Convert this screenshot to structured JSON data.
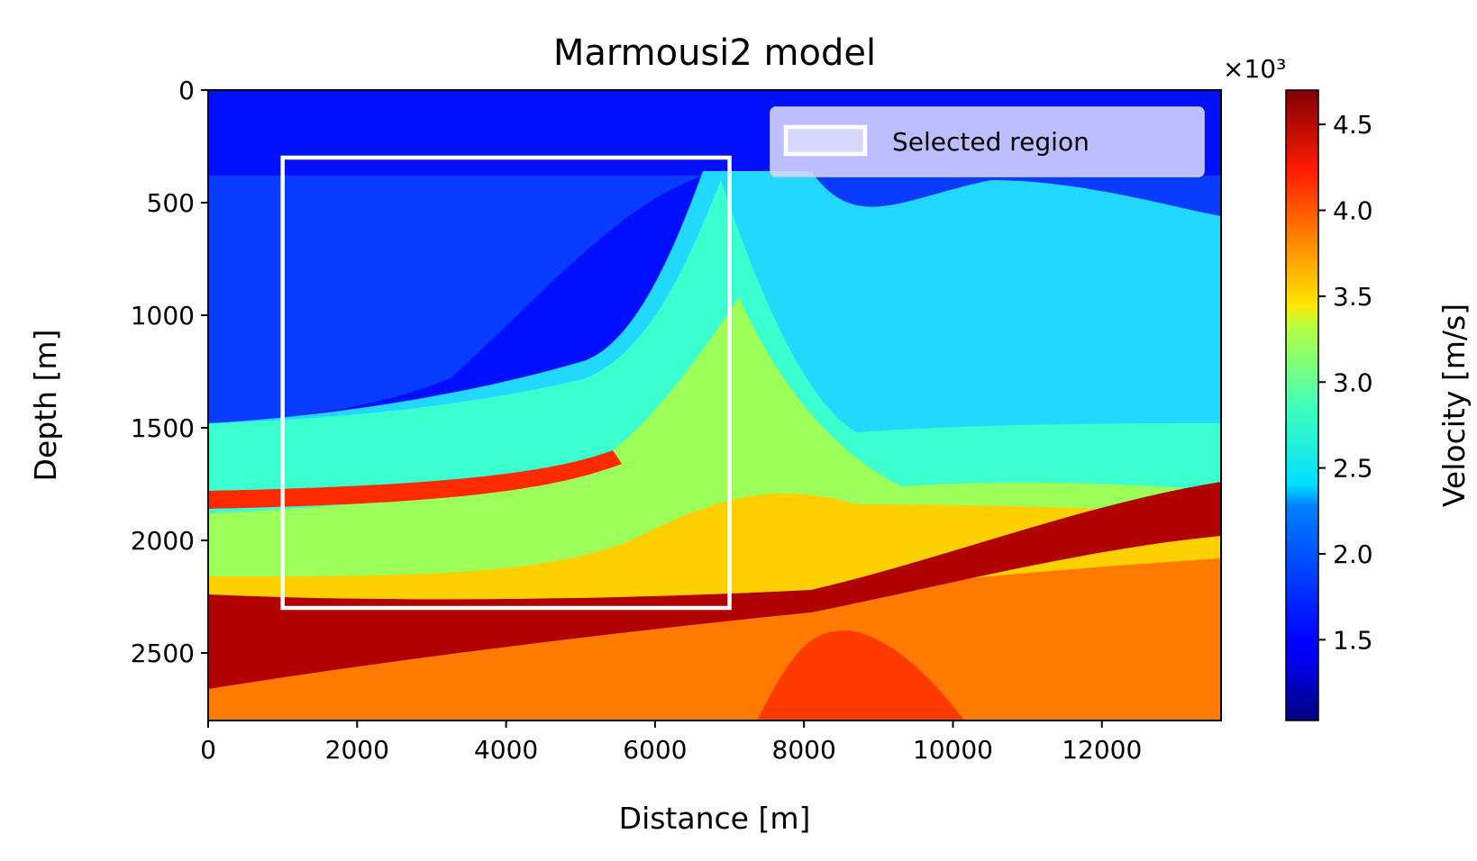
{
  "chart_data": {
    "type": "heatmap",
    "title": "Marmousi2 model",
    "xlabel": "Distance [m]",
    "ylabel": "Depth [m]",
    "xlim": [
      0,
      13600
    ],
    "ylim": [
      2800,
      0
    ],
    "x_ticks": [
      "0",
      "2000",
      "4000",
      "6000",
      "8000",
      "10000",
      "12000"
    ],
    "x_tick_values": [
      0,
      2000,
      4000,
      6000,
      8000,
      10000,
      12000
    ],
    "y_ticks": [
      "0",
      "500",
      "1000",
      "1500",
      "2000",
      "2500"
    ],
    "y_tick_values": [
      0,
      500,
      1000,
      1500,
      2000,
      2500
    ],
    "colormap": "jet",
    "colorbar": {
      "label": "Velocity [m/s]",
      "multiplier": "×10³",
      "range": [
        1.03,
        4.7
      ],
      "ticks": [
        "1.5",
        "2.0",
        "2.5",
        "3.0",
        "3.5",
        "4.0",
        "4.5"
      ],
      "tick_values": [
        1.5,
        2.0,
        2.5,
        3.0,
        3.5,
        4.0,
        4.5
      ]
    },
    "selected_region": {
      "x": [
        1000,
        7000
      ],
      "y": [
        300,
        2300
      ]
    },
    "legend": {
      "label": "Selected region",
      "position": "top-right"
    }
  }
}
